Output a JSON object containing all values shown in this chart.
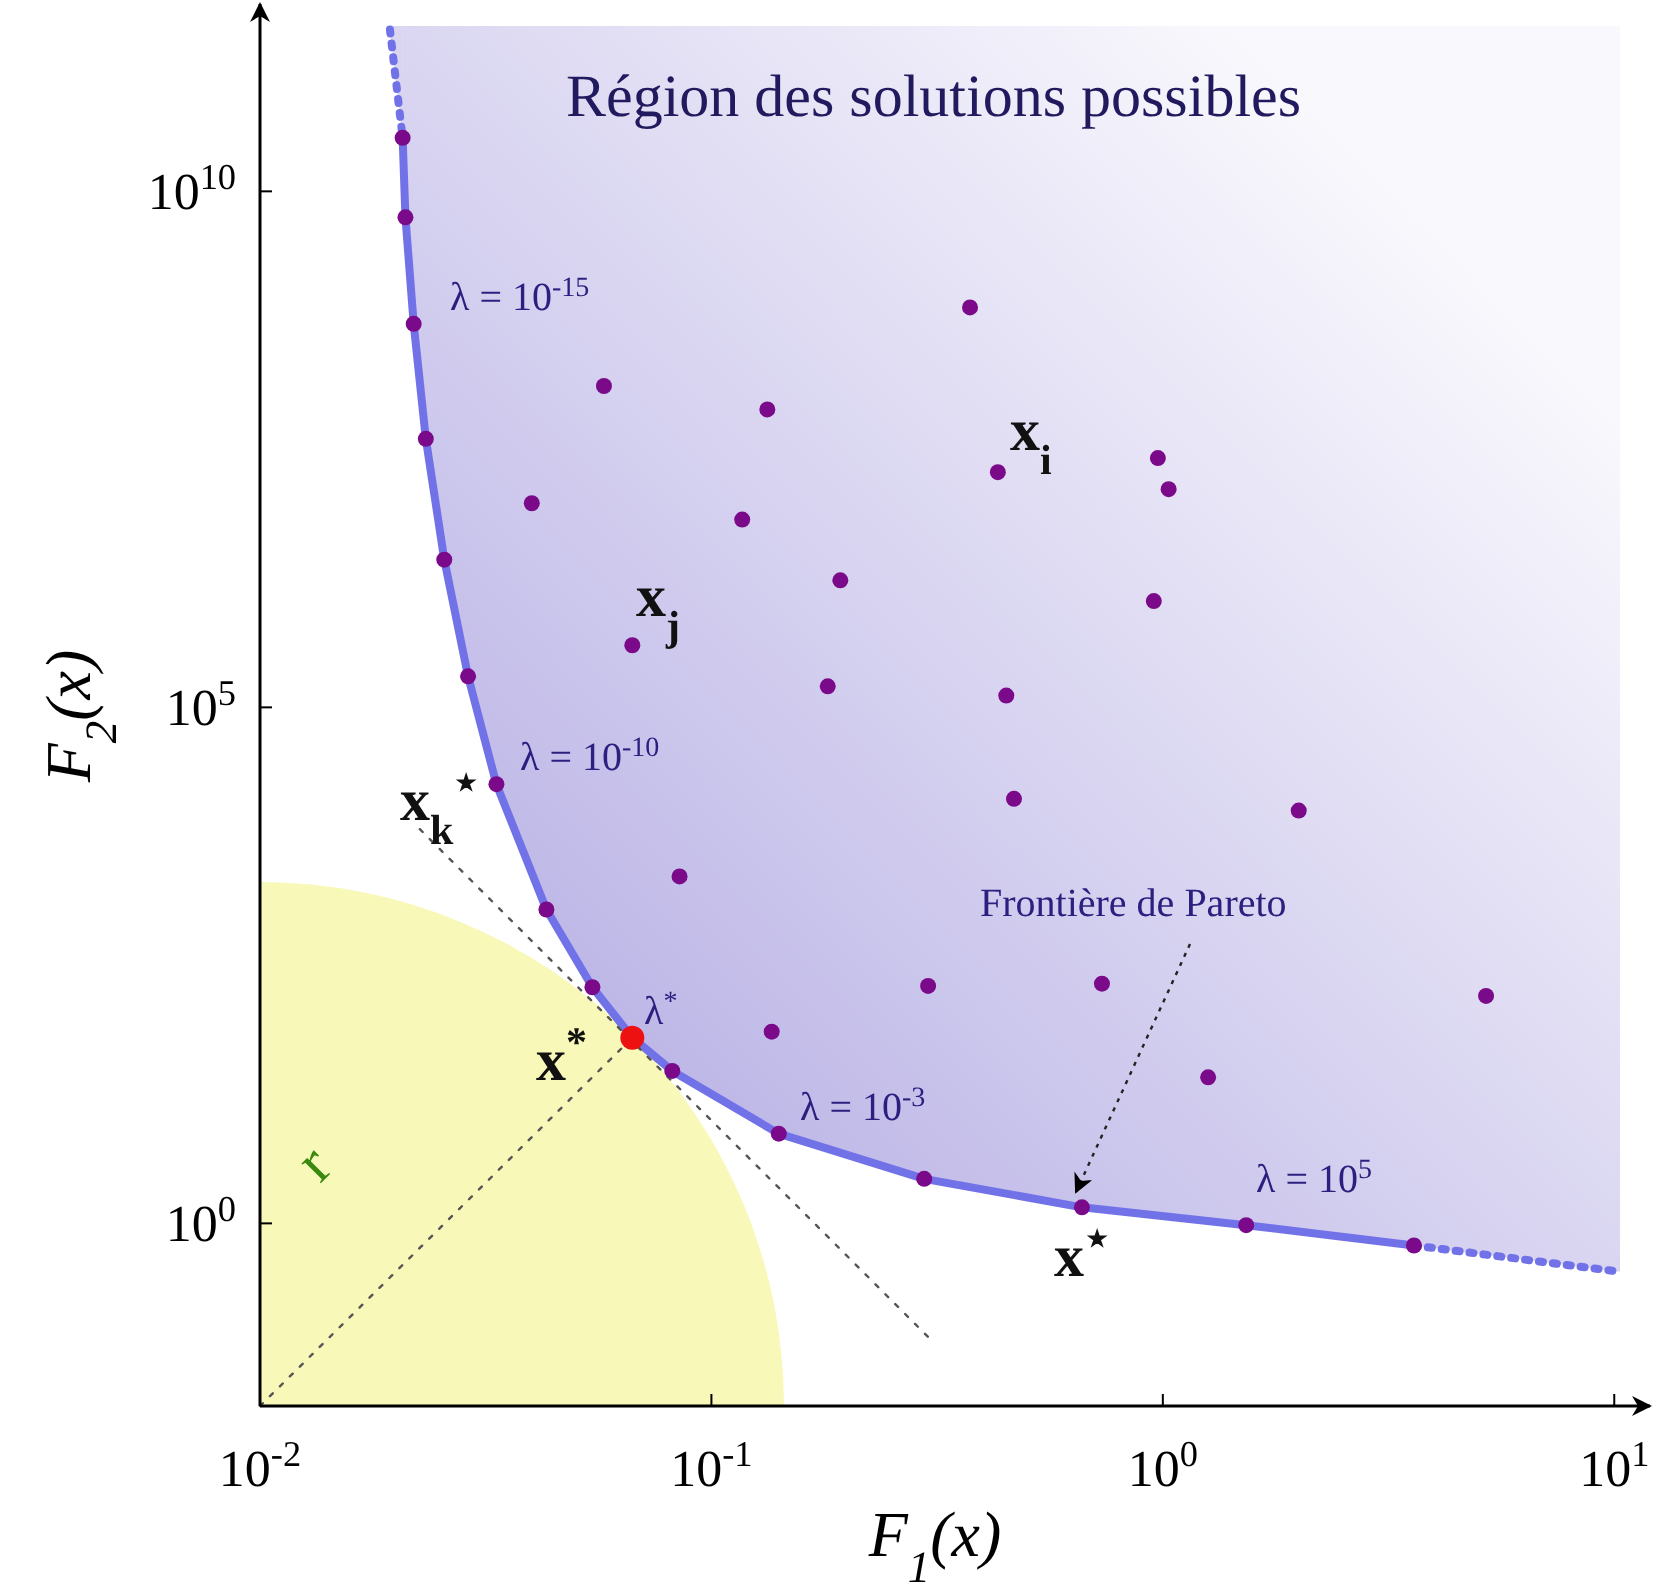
{
  "chart_data": {
    "type": "scatter",
    "xlabel": "F$_{1}$(x)",
    "ylabel": "F$_{2}$(x)",
    "log": "xy",
    "grid": false,
    "xlim": [
      0.01,
      12
    ],
    "ylim": [
      0.017,
      400000000000
    ],
    "xticks": [
      {
        "value": 0.01,
        "label": "10$^{-2}$"
      },
      {
        "value": 0.1,
        "label": "10$^{-1}$"
      },
      {
        "value": 1,
        "label": "10$^{0}$"
      },
      {
        "value": 10,
        "label": "10$^{1}$"
      }
    ],
    "yticks": [
      {
        "value": 1,
        "label": "10$^{0}$"
      },
      {
        "value": 100000,
        "label": "10$^{5}$"
      },
      {
        "value": 10000000000,
        "label": "10$^{10}$"
      }
    ],
    "series": [
      {
        "type": "line",
        "color": "#7272e8",
        "line_style": "solid",
        "marker": "none",
        "x": [
          0.0207,
          0.021,
          0.0219,
          0.0233,
          0.0256,
          0.0289,
          0.0334,
          0.0431,
          0.0545,
          0.0668,
          0.0819,
          0.141,
          0.296,
          0.662,
          1.53,
          3.6
        ],
        "values": [
          33000000000,
          5600000000,
          520000000,
          40000000,
          2700000,
          200000,
          18000,
          1100,
          194,
          63,
          30,
          7.4,
          2.7,
          1.43,
          0.96,
          0.61
        ],
        "lower": [
          33000000000,
          5600000000,
          520000000,
          40000000,
          2700000,
          200000,
          18000,
          1100,
          194,
          63,
          30,
          7.4,
          2.7,
          1.43,
          0.96,
          0.61
        ],
        "upper": [
          400000000000,
          400000000000,
          400000000000,
          400000000000,
          400000000000,
          400000000000,
          400000000000,
          400000000000,
          400000000000,
          400000000000,
          400000000000,
          400000000000,
          400000000000,
          400000000000,
          400000000000,
          400000000000
        ]
      },
      {
        "type": "line",
        "color": "#7272e8",
        "line_style": "dotted",
        "marker": "none",
        "x": [
          0.0194,
          0.0207
        ],
        "values": [
          370000000000,
          33000000000
        ],
        "lower": [
          370000000000,
          33000000000
        ],
        "upper": [
          400000000000,
          400000000000
        ]
      },
      {
        "type": "line",
        "color": "#7272e8",
        "line_style": "dotted",
        "marker": "none",
        "x": [
          3.6,
          10.3
        ],
        "values": [
          0.61,
          0.34
        ],
        "lower": [
          0.61,
          0.34
        ],
        "upper": [
          400000000000,
          400000000000
        ]
      },
      {
        "type": "line",
        "color": "#555555",
        "line_style": "dotted",
        "marker": "none",
        "x": [
          0.0226,
          0.305
        ],
        "values": [
          6600,
          0.076
        ]
      },
      {
        "type": "line",
        "color": "#555555",
        "line_style": "dotted",
        "marker": "none",
        "x": [
          0.01,
          0.0668
        ],
        "values": [
          0.017,
          63
        ]
      },
      {
        "color": "#7a0a8a",
        "marker": "circle",
        "x": [
          0.0207,
          0.021,
          0.0219,
          0.0233,
          0.0256,
          0.0289,
          0.0334,
          0.0431,
          0.0545,
          0.0819,
          0.141,
          0.296,
          0.662,
          1.53,
          3.6,
          0.374,
          0.0578,
          0.133,
          0.431,
          0.975,
          1.03,
          0.04,
          0.117,
          0.193,
          0.955,
          0.0668,
          0.181,
          0.45,
          0.468,
          2.0,
          0.085,
          0.302,
          0.733,
          5.2,
          0.136,
          1.26
        ],
        "values": [
          33000000000,
          5600000000,
          520000000,
          40000000,
          2700000,
          200000,
          18000,
          1100,
          194,
          30,
          7.4,
          2.7,
          1.43,
          0.96,
          0.61,
          750000000,
          130000000,
          77000000,
          19000000,
          26000000,
          13000000,
          9500000,
          6600000,
          1700000,
          1070000,
          400000,
          160000,
          130000,
          13000,
          10000,
          2300,
          200,
          210,
          160,
          72,
          26
        ]
      },
      {
        "color": "#ee1111",
        "marker": "circle",
        "x": [
          0.0668
        ],
        "values": [
          63
        ]
      }
    ],
    "annotations": [
      "Région des solutions possibles",
      "λ = 10$^{-15}$",
      "λ = 10$^{-10}$",
      "λ$^{*}$",
      "λ = 10$^{-3}$",
      "λ = 10$^{5}$",
      "x$_{i}$",
      "x$_{j}$",
      "x$_{k}$$^{⋆}$",
      "x$^{*}$",
      "x$^{⋆}$",
      "Frontière de Pareto",
      "r"
    ]
  }
}
